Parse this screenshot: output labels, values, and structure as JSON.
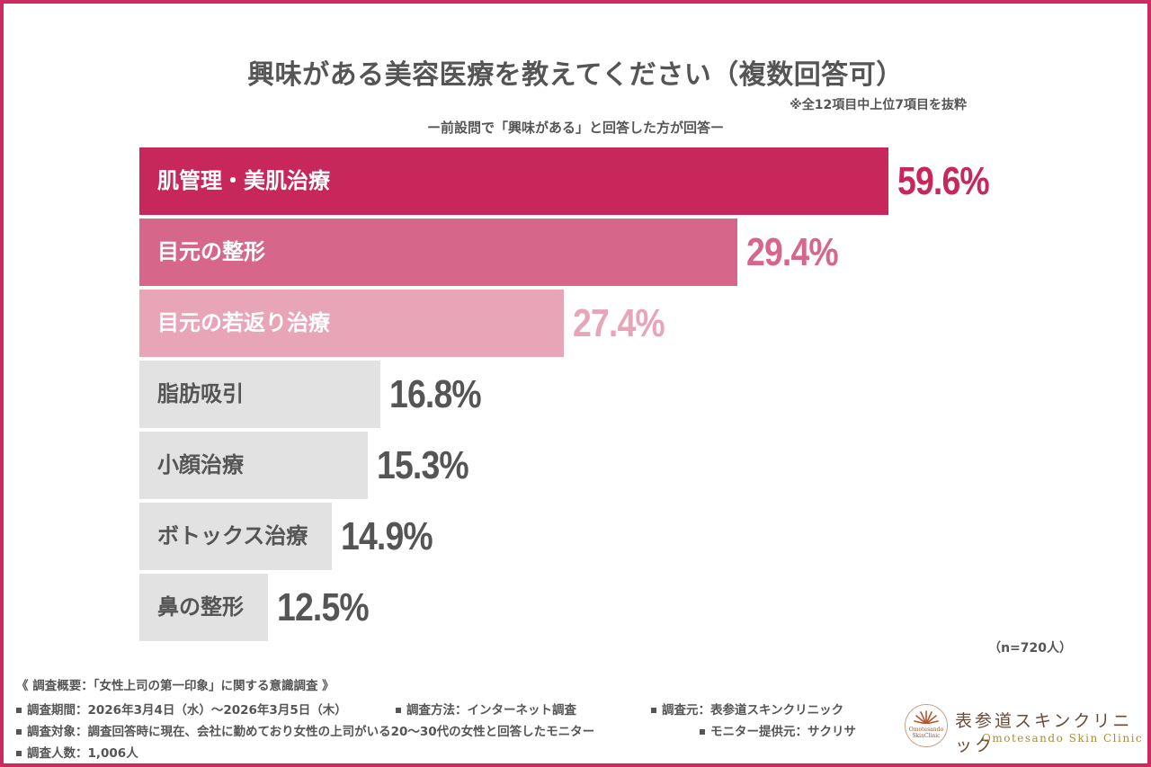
{
  "chart_data": {
    "type": "bar",
    "orientation": "horizontal",
    "title": "興味がある美容医療を教えてください（複数回答可）",
    "note": "※全12項目中上位7項目を抜粋",
    "subtitle": "ー前設問で「興味がある」と回答した方が回答ー",
    "categories": [
      "肌管理・美肌治療",
      "目元の整形",
      "目元の若返り治療",
      "脂肪吸引",
      "小顔治療",
      "ボトックス治療",
      "鼻の整形"
    ],
    "values": [
      59.6,
      29.4,
      27.4,
      16.8,
      15.3,
      14.9,
      12.5
    ],
    "value_labels": [
      "59.6%",
      "29.4%",
      "27.4%",
      "16.8%",
      "15.3%",
      "14.9%",
      "12.5%"
    ],
    "unit": "%",
    "xlabel": "",
    "ylabel": "",
    "grid": false,
    "legend": "none",
    "n_label": "（n=720人）",
    "bar_colors": [
      "#c8275b",
      "#d6668a",
      "#e8a5b8",
      "#e2e2e2",
      "#e2e2e2",
      "#e2e2e2",
      "#e2e2e2"
    ],
    "label_colors": [
      "#ffffff",
      "#ffffff",
      "#ffffff",
      "#555555",
      "#555555",
      "#555555",
      "#555555"
    ],
    "value_colors": [
      "#c8275b",
      "#d6668a",
      "#e8a5b8",
      "#555555",
      "#555555",
      "#555555",
      "#555555"
    ]
  },
  "footer": {
    "heading": "《 調査概要：「女性上司の第一印象」に関する意識調査 》",
    "period": "調査期間：2026年3月4日（水）～2026年3月5日（木）",
    "method": "調査方法：インターネット調査",
    "source": "調査元：表参道スキンクリニック",
    "target": "調査対象：調査回答時に現在、会社に勤めており女性の上司がいる20～30代の女性と回答したモニター",
    "provider": "モニター提供元：サクリサ",
    "count": "調査人数：1,006人"
  },
  "brand": {
    "name_jp": "表参道スキンクリニック",
    "name_en": "Omotesando Skin Clinic",
    "logo_text_1": "Omotesando",
    "logo_text_2": "SkinClinic"
  },
  "colors": {
    "frame": "#cf2a5f",
    "accent": "#c8275b"
  }
}
